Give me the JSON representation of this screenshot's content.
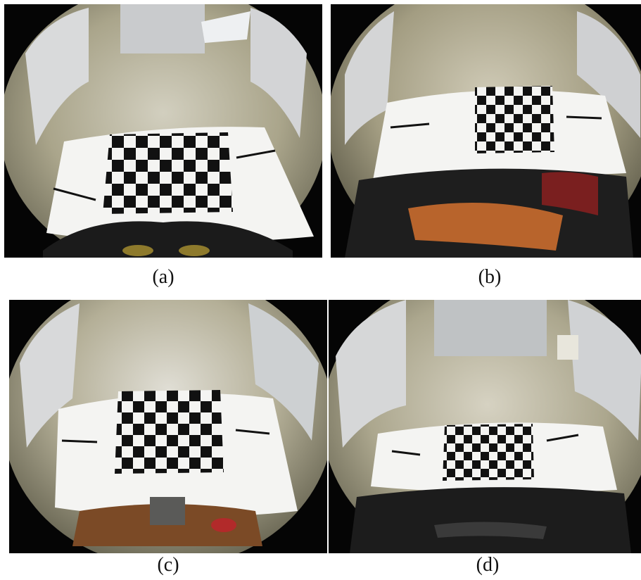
{
  "panels": [
    {
      "id": "a",
      "caption": "(a)"
    },
    {
      "id": "b",
      "caption": "(b)"
    },
    {
      "id": "c",
      "caption": "(c)"
    },
    {
      "id": "d",
      "caption": "(d)"
    }
  ],
  "colors": {
    "vignette": "#050505",
    "floor": "#a9a48a",
    "floor_light": "#d8d6cc",
    "wall": "#e6e8ea",
    "paper": "#f4f4f2",
    "checker_dark": "#111111",
    "vehicle_dark": "#1b1b1b",
    "vehicle_orange": "#b8642c"
  }
}
